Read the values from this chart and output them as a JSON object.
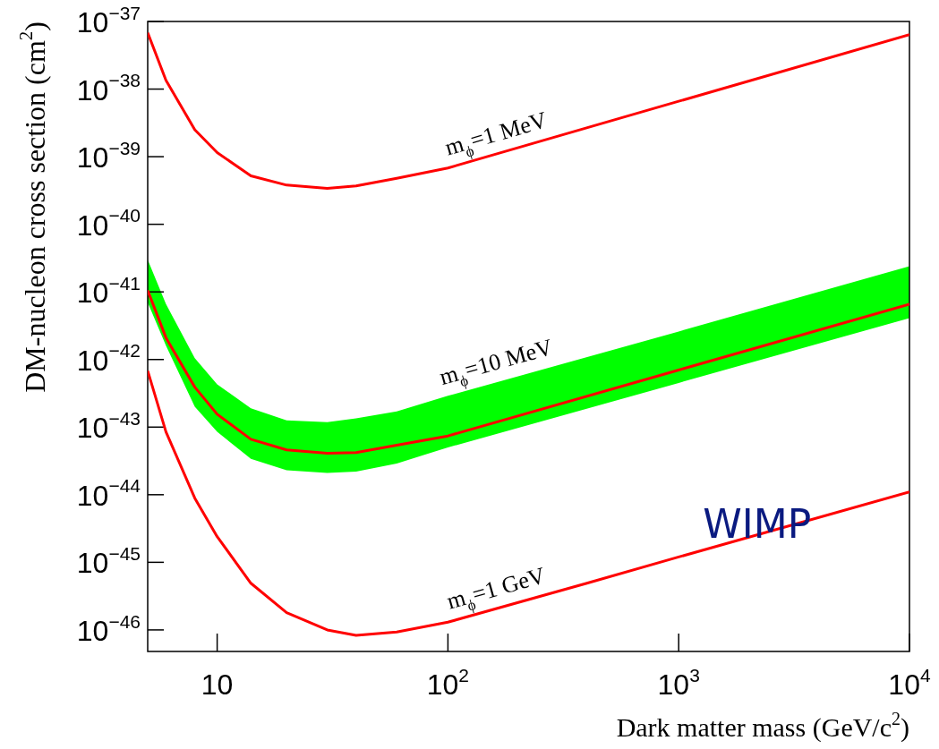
{
  "chart_data": {
    "type": "line",
    "xlabel": "Dark matter mass (GeV/c$^{2}$)",
    "ylabel": "DM-nucleon cross section (cm$^{2}$)",
    "log": "xy",
    "grid": false,
    "legend": false,
    "marker": "none",
    "line_style": "solid",
    "x": [
      5,
      6,
      8,
      10,
      14,
      20,
      30,
      40,
      60,
      100,
      1000,
      10000
    ],
    "xlim": [
      5,
      10000
    ],
    "xticks": [
      {
        "value": 10,
        "label": "10"
      },
      {
        "value": 100,
        "label": "10$^{2}$"
      },
      {
        "value": 1000,
        "label": "10$^{3}$"
      },
      {
        "value": 10000,
        "label": "10$^{4}$"
      }
    ],
    "ylim": [
      4.8e-47,
      1e-37
    ],
    "yticks": [
      {
        "value": 1e-37,
        "label": "10$^{−37}$"
      },
      {
        "value": 1e-38,
        "label": "10$^{−38}$"
      },
      {
        "value": 1e-39,
        "label": "10$^{−39}$"
      },
      {
        "value": 1e-40,
        "label": "10$^{−40}$"
      },
      {
        "value": 1e-41,
        "label": "10$^{−41}$"
      },
      {
        "value": 1e-42,
        "label": "10$^{−42}$"
      },
      {
        "value": 1e-43,
        "label": "10$^{−43}$"
      },
      {
        "value": 1e-44,
        "label": "10$^{−44}$"
      },
      {
        "value": 1e-45,
        "label": "10$^{−45}$"
      },
      {
        "value": 1e-46,
        "label": "10$^{−46}$"
      }
    ],
    "series": [
      {
        "name": "m$_{ϕ}$=1 MeV",
        "color": "#ff0000",
        "values": [
          6.8e-38,
          1.35e-38,
          2.5e-39,
          1.15e-39,
          5.2e-40,
          3.8e-40,
          3.4e-40,
          3.7e-40,
          4.8e-40,
          6.8e-40,
          6.6e-39,
          6.4e-38
        ]
      },
      {
        "name": "m$_{ϕ}$=10 MeV",
        "color": "#ff0000",
        "values": [
          1.05e-41,
          2.1e-42,
          3.9e-43,
          1.55e-43,
          6.6e-44,
          4.6e-44,
          4.1e-44,
          4.2e-44,
          5.4e-44,
          7.4e-44,
          7e-43,
          6.6e-42
        ],
        "lower": [
          7e-42,
          1.6e-42,
          2e-43,
          8.5e-44,
          3.4e-44,
          2.3e-44,
          2.1e-44,
          2.2e-44,
          2.9e-44,
          5e-44,
          4.5e-43,
          4.1e-42
        ],
        "upper": [
          3e-41,
          6.6e-42,
          1.05e-42,
          4.3e-43,
          1.9e-43,
          1.26e-43,
          1.18e-43,
          1.35e-43,
          1.7e-43,
          2.9e-43,
          2.6e-42,
          2.4e-41
        ]
      },
      {
        "name": "m$_{ϕ}$=1 GeV",
        "color": "#ff0000",
        "x": [
          5,
          6,
          8,
          10,
          14,
          20,
          30,
          40,
          60,
          100,
          400,
          1000,
          10000
        ],
        "values": [
          6.8e-43,
          8.5e-44,
          8.9e-45,
          2.4e-45,
          4.9e-46,
          1.8e-46,
          1e-46,
          8.3e-47,
          9.3e-47,
          1.3e-46,
          4.9e-46,
          1.2e-45,
          1.1e-44
        ]
      }
    ],
    "annotations": [
      "WIMP"
    ]
  }
}
